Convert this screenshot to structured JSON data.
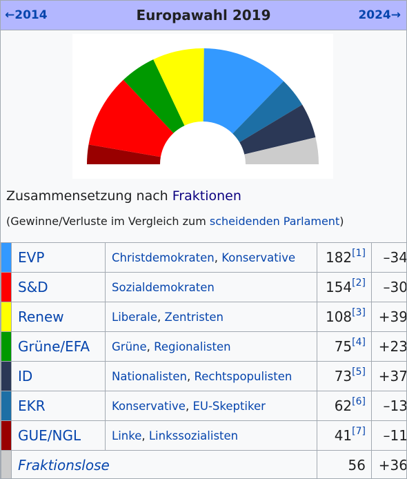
{
  "header": {
    "prev_label": "←2014",
    "title": "Europawahl 2019",
    "next_label": "2024→"
  },
  "caption": {
    "prefix": "Zusammensetzung nach ",
    "link": "Fraktionen"
  },
  "subcaption": {
    "prefix": "(Gewinne/Verluste im Vergleich zum ",
    "link": "scheidenden Parlament",
    "suffix": ")"
  },
  "groups": [
    {
      "abbr": "EVP",
      "desc1": "Christdemokraten",
      "desc2": "Konservative",
      "seats": "182",
      "ref": "[1]",
      "change": "–34",
      "color": "#3399ff"
    },
    {
      "abbr": "S&D",
      "desc1": "Sozialdemokraten",
      "desc2": "",
      "seats": "154",
      "ref": "[2]",
      "change": "–30",
      "color": "#ff0000"
    },
    {
      "abbr": "Renew",
      "desc1": "Liberale",
      "desc2": "Zentristen",
      "seats": "108",
      "ref": "[3]",
      "change": "+39",
      "color": "#ffff00"
    },
    {
      "abbr": "Grüne/EFA",
      "desc1": "Grüne",
      "desc2": "Regionalisten",
      "seats": "75",
      "ref": "[4]",
      "change": "+23",
      "color": "#009900"
    },
    {
      "abbr": "ID",
      "desc1": "Nationalisten",
      "desc2": "Rechtspopulisten",
      "seats": "73",
      "ref": "[5]",
      "change": "+37",
      "color": "#2b3856"
    },
    {
      "abbr": "EKR",
      "desc1": "Konservative",
      "desc2": "EU-Skeptiker",
      "seats": "62",
      "ref": "[6]",
      "change": "–13",
      "color": "#1d6fa5"
    },
    {
      "abbr": "GUE/NGL",
      "desc1": "Linke",
      "desc2": "Linkssozialisten",
      "seats": "41",
      "ref": "[7]",
      "change": "–11",
      "color": "#990000"
    },
    {
      "abbr": "Fraktionslose",
      "desc1": "",
      "desc2": "",
      "seats": "56",
      "ref": "",
      "change": "+36",
      "color": "#cccccc"
    }
  ],
  "chart_data": {
    "type": "pie",
    "shape": "semicircle",
    "order": [
      "GUE/NGL",
      "S&D",
      "Grüne/EFA",
      "Renew",
      "EVP",
      "EKR",
      "ID",
      "Fraktionslose"
    ],
    "values": [
      41,
      154,
      75,
      108,
      182,
      62,
      73,
      56
    ],
    "colors": [
      "#990000",
      "#ff0000",
      "#009900",
      "#ffff00",
      "#3399ff",
      "#1d6fa5",
      "#2b3856",
      "#cccccc"
    ]
  }
}
